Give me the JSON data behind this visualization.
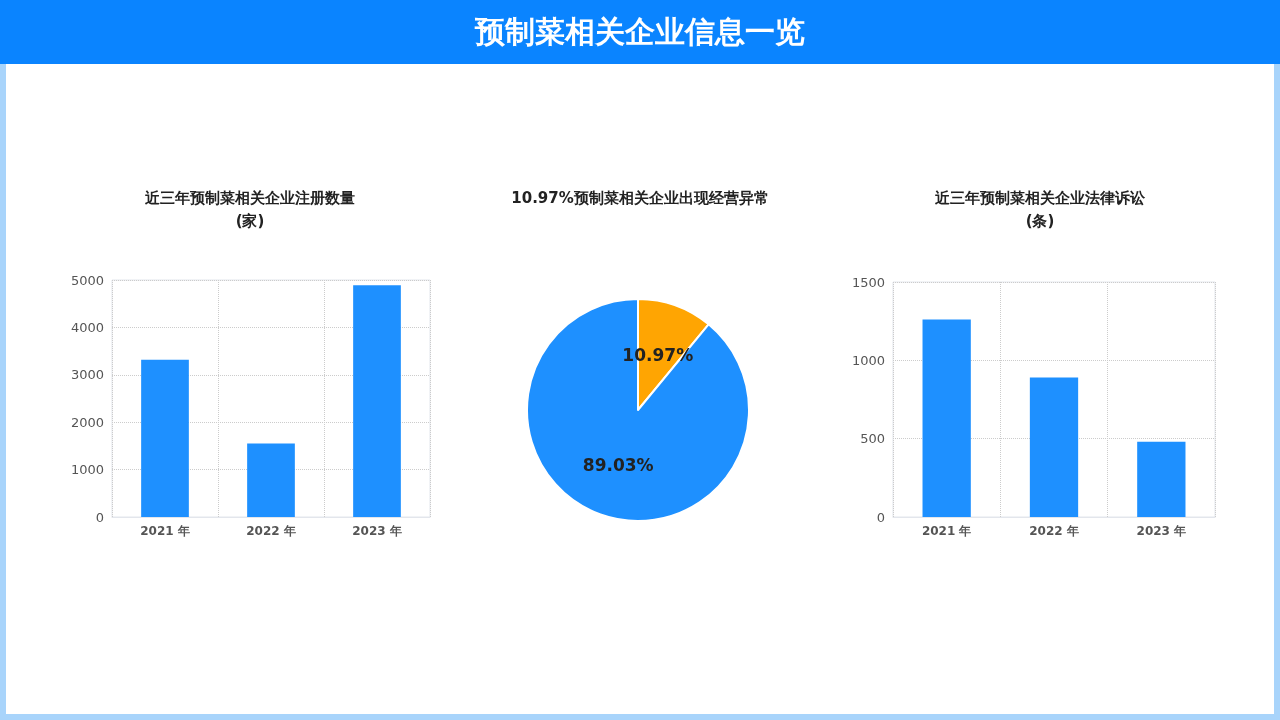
{
  "chart_data": [
    {
      "type": "other",
      "title": "预制菜相关企业信息一览"
    },
    {
      "type": "bar",
      "title": "近三年预制菜相关企业注册数量",
      "subtitle": "(家)",
      "categories": [
        "2021 年",
        "2022 年",
        "2023 年"
      ],
      "values": [
        3320,
        1550,
        4890
      ],
      "color": "#1e90ff",
      "ylim": [
        0,
        5000
      ],
      "yticks": [
        0,
        1000,
        2000,
        3000,
        4000,
        5000
      ],
      "grid": true
    },
    {
      "type": "pie",
      "title": "10.97%预制菜相关企业出现经营异常",
      "categories": [
        null,
        null
      ],
      "values": [
        10.97,
        89.03
      ],
      "colors": [
        "#ffa502",
        "#1e90ff"
      ],
      "value_labels": [
        "10.97%",
        "89.03%"
      ]
    },
    {
      "type": "bar",
      "title": "近三年预制菜相关企业法律诉讼",
      "subtitle": "(条)",
      "categories": [
        "2021 年",
        "2022 年",
        "2023 年"
      ],
      "values": [
        1260,
        890,
        480
      ],
      "color": "#1e90ff",
      "ylim": [
        0,
        1500
      ],
      "yticks": [
        0,
        500,
        1000,
        1500
      ],
      "grid": true
    }
  ]
}
